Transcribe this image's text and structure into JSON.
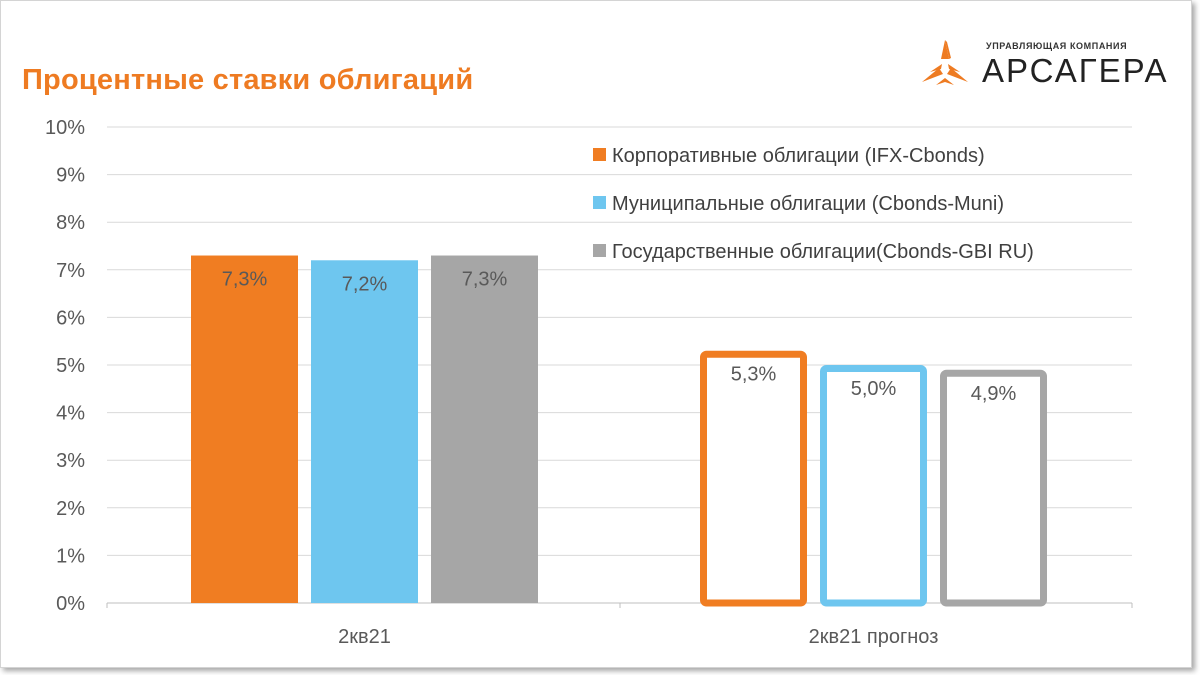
{
  "page": {
    "title": "Процентные ставки облигаций"
  },
  "logo": {
    "subtitle": "УПРАВЛЯЮЩАЯ КОМПАНИЯ",
    "name": "АРСАГЕРА",
    "icon": "arsagera-star-icon",
    "color": "#ee7b22"
  },
  "chart_data": {
    "type": "bar",
    "categories": [
      "2кв21",
      "2кв21 прогноз"
    ],
    "series": [
      {
        "name": "Корпоративные облигации (IFX-Cbonds)",
        "values": [
          7.3,
          5.3
        ],
        "labels": [
          "7,3%",
          "5,3%"
        ],
        "color": "#f07d22"
      },
      {
        "name": "Муниципальные облигации (Cbonds-Muni)",
        "values": [
          7.2,
          5.0
        ],
        "labels": [
          "7,2%",
          "5,0%"
        ],
        "color": "#6ec6ef"
      },
      {
        "name": "Государственные облигации(Cbonds-GBI RU)",
        "values": [
          7.3,
          4.9
        ],
        "labels": [
          "7,3%",
          "4,9%"
        ],
        "color": "#a6a6a6"
      }
    ],
    "category_styles": [
      "filled",
      "outline"
    ],
    "y_ticks": [
      "0%",
      "1%",
      "2%",
      "3%",
      "4%",
      "5%",
      "6%",
      "7%",
      "8%",
      "9%",
      "10%"
    ],
    "ylim": [
      0,
      10
    ],
    "grid": true,
    "legend_position": "top-right",
    "title": "",
    "xlabel": "",
    "ylabel": ""
  }
}
